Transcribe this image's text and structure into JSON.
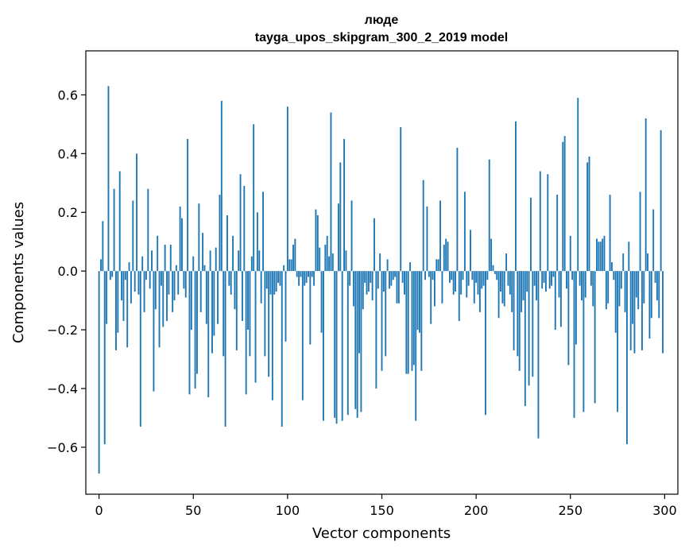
{
  "chart_data": {
    "type": "bar",
    "title": "люде",
    "subtitle": "tayga_upos_skipgram_300_2_2019 model",
    "xlabel": "Vector components",
    "ylabel": "Components values",
    "xlim": [
      -7,
      307
    ],
    "ylim": [
      -0.76,
      0.75
    ],
    "xticks": [
      0,
      50,
      100,
      150,
      200,
      250,
      300
    ],
    "xtick_labels": [
      "0",
      "50",
      "100",
      "150",
      "200",
      "250",
      "300"
    ],
    "yticks": [
      -0.6,
      -0.4,
      -0.2,
      0.0,
      0.2,
      0.4,
      0.6
    ],
    "ytick_labels": [
      "−0.6",
      "−0.4",
      "−0.2",
      "0.0",
      "0.2",
      "0.4",
      "0.6"
    ],
    "bar_color": "#1f77b4",
    "grid": false,
    "x": "0..299",
    "values": [
      -0.69,
      0.04,
      0.17,
      -0.59,
      -0.18,
      0.63,
      -0.03,
      -0.02,
      0.28,
      -0.27,
      -0.21,
      0.34,
      -0.1,
      -0.17,
      -0.03,
      -0.26,
      0.03,
      -0.11,
      0.24,
      -0.07,
      0.4,
      -0.08,
      -0.53,
      0.05,
      -0.14,
      -0.03,
      0.28,
      -0.06,
      0.07,
      -0.41,
      -0.13,
      0.12,
      -0.26,
      -0.05,
      -0.19,
      0.09,
      -0.17,
      -0.08,
      0.09,
      -0.14,
      -0.1,
      0.02,
      -0.08,
      0.22,
      0.18,
      -0.06,
      -0.09,
      0.45,
      -0.42,
      -0.2,
      0.05,
      -0.4,
      -0.35,
      0.23,
      -0.14,
      0.13,
      0.02,
      -0.18,
      -0.43,
      0.07,
      -0.28,
      -0.22,
      0.08,
      -0.18,
      0.26,
      0.58,
      -0.29,
      -0.53,
      0.19,
      -0.05,
      -0.08,
      0.12,
      -0.13,
      -0.27,
      0.07,
      0.33,
      -0.17,
      0.29,
      -0.42,
      -0.2,
      -0.29,
      0.05,
      0.5,
      -0.38,
      0.2,
      0.07,
      -0.11,
      0.27,
      -0.29,
      -0.06,
      -0.36,
      -0.08,
      -0.44,
      -0.08,
      -0.07,
      -0.04,
      -0.05,
      -0.53,
      0.02,
      -0.24,
      0.56,
      0.04,
      0.04,
      0.09,
      0.11,
      -0.02,
      -0.05,
      -0.02,
      -0.44,
      -0.05,
      -0.04,
      -0.02,
      -0.25,
      -0.02,
      -0.05,
      0.21,
      0.19,
      0.08,
      -0.21,
      -0.51,
      0.09,
      0.12,
      0.05,
      0.54,
      0.06,
      -0.5,
      -0.52,
      0.23,
      0.37,
      -0.51,
      0.45,
      0.07,
      -0.49,
      -0.05,
      0.24,
      -0.12,
      -0.47,
      -0.5,
      -0.28,
      -0.48,
      -0.13,
      -0.04,
      -0.08,
      -0.07,
      -0.04,
      -0.1,
      0.18,
      -0.4,
      -0.06,
      0.06,
      -0.34,
      -0.07,
      -0.29,
      0.04,
      -0.06,
      -0.05,
      -0.03,
      -0.02,
      -0.11,
      -0.11,
      0.49,
      -0.04,
      -0.08,
      -0.35,
      -0.35,
      0.03,
      -0.34,
      -0.32,
      -0.51,
      -0.2,
      -0.21,
      -0.34,
      0.31,
      -0.03,
      0.22,
      -0.02,
      -0.18,
      -0.03,
      -0.12,
      0.04,
      0.04,
      0.24,
      -0.11,
      0.09,
      0.11,
      0.1,
      -0.04,
      -0.03,
      -0.08,
      -0.07,
      0.42,
      -0.17,
      -0.08,
      -0.03,
      0.27,
      -0.09,
      -0.05,
      0.14,
      -0.03,
      -0.11,
      -0.04,
      -0.08,
      -0.14,
      -0.06,
      -0.05,
      -0.49,
      -0.03,
      0.38,
      0.11,
      0.02,
      -0.01,
      -0.03,
      -0.16,
      -0.07,
      -0.11,
      -0.12,
      0.06,
      -0.05,
      -0.08,
      -0.14,
      -0.27,
      0.51,
      -0.29,
      -0.34,
      -0.14,
      -0.1,
      -0.46,
      -0.07,
      -0.39,
      0.25,
      -0.36,
      -0.05,
      -0.1,
      -0.57,
      0.34,
      -0.06,
      -0.04,
      -0.07,
      0.33,
      -0.06,
      -0.05,
      -0.02,
      -0.2,
      0.26,
      -0.09,
      -0.19,
      0.44,
      0.46,
      -0.06,
      -0.32,
      0.12,
      -0.03,
      -0.5,
      -0.25,
      0.59,
      -0.05,
      -0.1,
      -0.48,
      -0.09,
      0.37,
      0.39,
      -0.05,
      -0.12,
      -0.45,
      0.11,
      0.1,
      0.1,
      0.11,
      0.12,
      -0.13,
      -0.11,
      0.26,
      0.03,
      -0.03,
      -0.21,
      -0.48,
      -0.12,
      -0.06,
      0.06,
      -0.14,
      -0.59,
      0.1,
      -0.27,
      -0.18,
      -0.28,
      -0.09,
      -0.13,
      0.27,
      -0.27,
      -0.11,
      0.52,
      0.06,
      -0.23,
      -0.16,
      0.21,
      -0.04,
      -0.1,
      -0.16,
      0.48,
      -0.28
    ]
  }
}
